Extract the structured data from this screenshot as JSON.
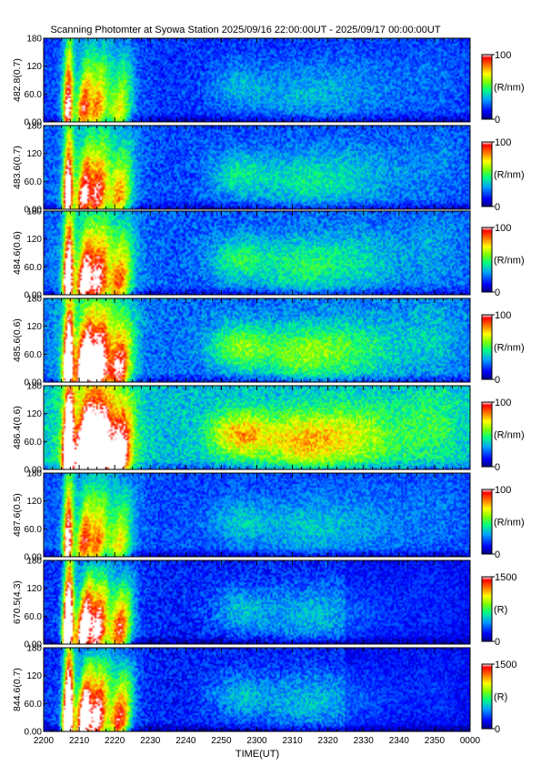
{
  "title": "Scanning Photomter at Syowa Station 2025/09/16 22:00:00UT - 2025/09/17 00:00:00UT",
  "xlabel": "TIME(UT)",
  "x_tick_labels": [
    "2200",
    "2210",
    "2220",
    "2230",
    "2240",
    "2250",
    "2300",
    "2310",
    "2320",
    "2330",
    "2340",
    "2350",
    "0000"
  ],
  "y_tick_labels": [
    "0.00",
    "60.0",
    "120",
    "180"
  ],
  "colorbar_unit_labels": [
    "(R/nm)",
    "(R/nm)",
    "(R/nm)",
    "(R/nm)",
    "(R/nm)",
    "(R/nm)",
    "(R)",
    "(R)"
  ],
  "colors": {
    "background_blue": "#1030d8",
    "colormap": [
      "#000080",
      "#0000ff",
      "#00a0ff",
      "#00ff80",
      "#80ff00",
      "#ffff00",
      "#ff8000",
      "#ff0000",
      "#ffffff"
    ]
  },
  "chart_data": {
    "type": "heatmap",
    "title": "Scanning Photomter at Syowa Station 2025/09/16 22:00:00UT - 2025/09/17 00:00:00UT",
    "xlabel": "TIME(UT)",
    "x_range": [
      "2025/09/16 22:00:00UT",
      "2025/09/17 00:00:00UT"
    ],
    "x_ticks": [
      "2200",
      "2210",
      "2220",
      "2230",
      "2240",
      "2250",
      "2300",
      "2310",
      "2320",
      "2330",
      "2340",
      "2350",
      "0000"
    ],
    "y_range": [
      0,
      180
    ],
    "y_ticks": [
      "0.00",
      "60.0",
      "120",
      "180"
    ],
    "colorbar_position": "right",
    "panels": [
      {
        "ylabel": "482.8(0.7)",
        "color_range": [
          0,
          100
        ],
        "colorbar_ticks": [
          "0",
          "100"
        ],
        "colorbar_unit": "(R/nm)",
        "base": 0.18,
        "bright": 0.85,
        "scale": 0.55,
        "diffuse": 0.25
      },
      {
        "ylabel": "483.6(0.7)",
        "color_range": [
          0,
          100
        ],
        "colorbar_ticks": [
          "0",
          "100"
        ],
        "colorbar_unit": "(R/nm)",
        "base": 0.2,
        "bright": 0.95,
        "scale": 0.65,
        "diffuse": 0.35
      },
      {
        "ylabel": "484.6(0.6)",
        "color_range": [
          0,
          100
        ],
        "colorbar_ticks": [
          "0",
          "100"
        ],
        "colorbar_unit": "(R/nm)",
        "base": 0.22,
        "bright": 1.0,
        "scale": 0.75,
        "diffuse": 0.4
      },
      {
        "ylabel": "485.6(0.6)",
        "color_range": [
          0,
          100
        ],
        "colorbar_ticks": [
          "0",
          "100"
        ],
        "colorbar_unit": "(R/nm)",
        "base": 0.24,
        "bright": 1.1,
        "scale": 0.85,
        "diffuse": 0.55
      },
      {
        "ylabel": "486.4(0.6)",
        "color_range": [
          0,
          100
        ],
        "colorbar_ticks": [
          "0",
          "100"
        ],
        "colorbar_unit": "(R/nm)",
        "base": 0.34,
        "bright": 1.25,
        "scale": 1.0,
        "diffuse": 0.7
      },
      {
        "ylabel": "487.6(0.5)",
        "color_range": [
          0,
          100
        ],
        "colorbar_ticks": [
          "0",
          "100"
        ],
        "colorbar_unit": "(R/nm)",
        "base": 0.2,
        "bright": 0.85,
        "scale": 0.5,
        "diffuse": 0.25
      },
      {
        "ylabel": "670.5(4.3)",
        "color_range": [
          0,
          1500
        ],
        "colorbar_ticks": [
          "0",
          "1500"
        ],
        "colorbar_unit": "(R)",
        "base": 0.15,
        "bright": 1.4,
        "scale": 0.75,
        "diffuse": 0.3
      },
      {
        "ylabel": "844.6(0.7)",
        "color_range": [
          0,
          1500
        ],
        "colorbar_ticks": [
          "0",
          "1500"
        ],
        "colorbar_unit": "(R)",
        "base": 0.15,
        "bright": 1.4,
        "scale": 0.75,
        "diffuse": 0.3
      }
    ]
  }
}
